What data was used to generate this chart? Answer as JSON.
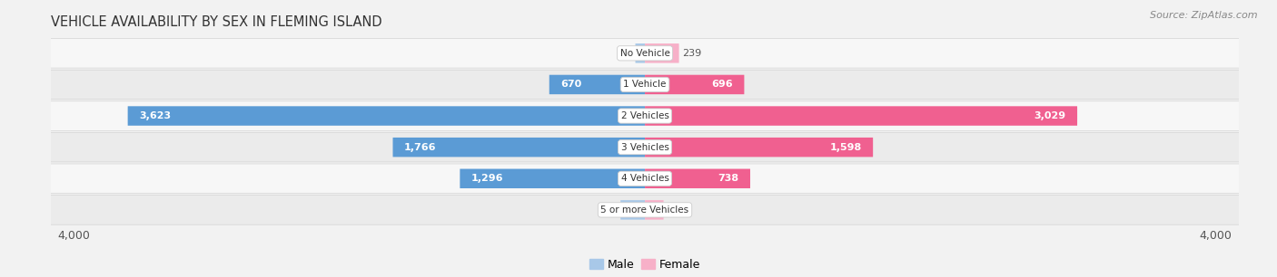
{
  "title": "VEHICLE AVAILABILITY BY SEX IN FLEMING ISLAND",
  "source": "Source: ZipAtlas.com",
  "categories": [
    "No Vehicle",
    "1 Vehicle",
    "2 Vehicles",
    "3 Vehicles",
    "4 Vehicles",
    "5 or more Vehicles"
  ],
  "male_values": [
    67,
    670,
    3623,
    1766,
    1296,
    171
  ],
  "female_values": [
    239,
    696,
    3029,
    1598,
    738,
    131
  ],
  "male_color_large": "#5b9bd5",
  "male_color_small": "#a8c8e8",
  "female_color_large": "#f06090",
  "female_color_small": "#f7b0c8",
  "large_threshold": 500,
  "xlim": 4000,
  "bg_color": "#f2f2f2",
  "row_bg_odd": "#f7f7f7",
  "row_bg_even": "#ebebeb",
  "title_fontsize": 10.5,
  "source_fontsize": 8,
  "tick_fontsize": 9,
  "legend_fontsize": 9,
  "bar_label_fontsize": 8,
  "category_fontsize": 7.5,
  "inside_threshold": 350
}
